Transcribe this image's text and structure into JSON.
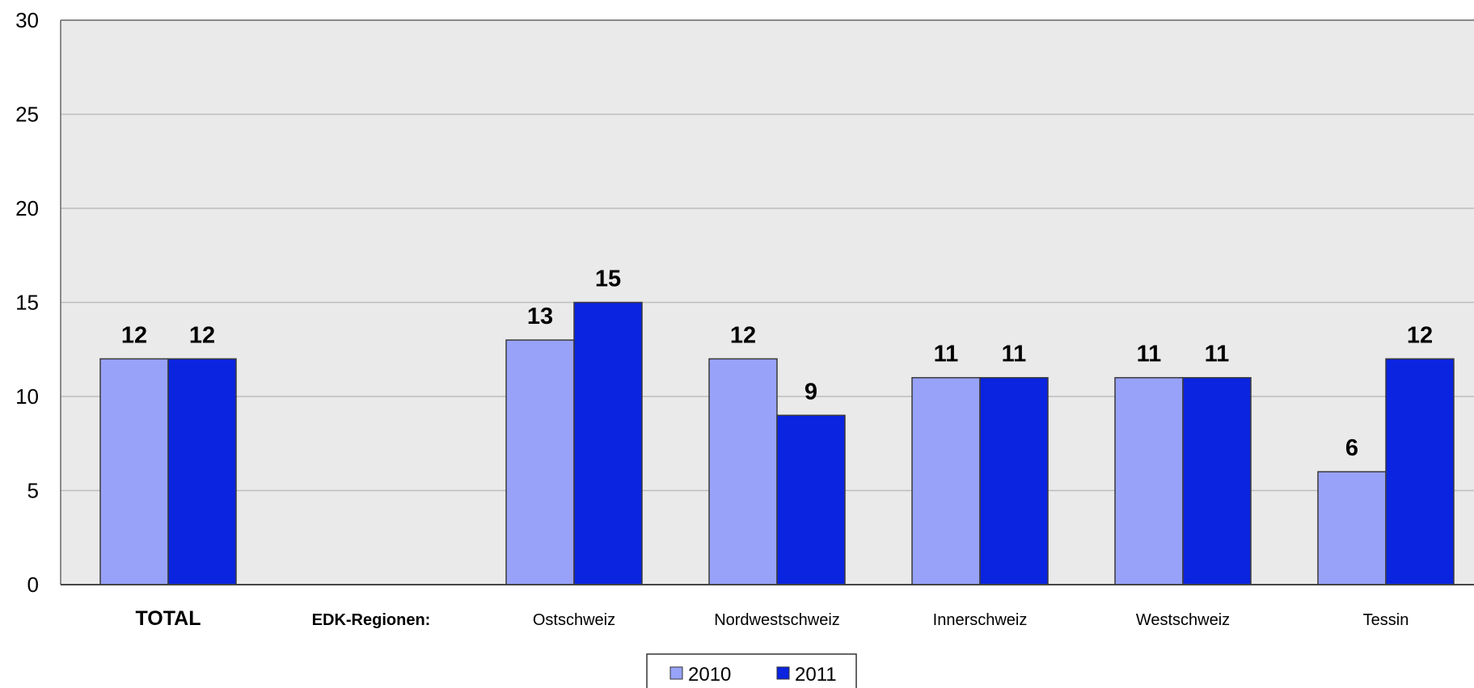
{
  "chart_data": {
    "type": "bar",
    "categories": [
      "TOTAL",
      "EDK-Regionen:",
      "Ostschweiz",
      "Nordwestschweiz",
      "Innerschweiz",
      "Westschweiz",
      "Tessin"
    ],
    "category_styles": [
      "bold-large",
      "bold",
      "normal",
      "normal",
      "normal",
      "normal",
      "normal"
    ],
    "series": [
      {
        "name": "2010",
        "color": "#98A2F8",
        "values": [
          12,
          null,
          13,
          12,
          11,
          11,
          6
        ]
      },
      {
        "name": "2011",
        "color": "#0A24E0",
        "values": [
          12,
          null,
          15,
          9,
          11,
          11,
          12
        ]
      }
    ],
    "ylim": [
      0,
      30
    ],
    "yticks": [
      0,
      5,
      10,
      15,
      20,
      25,
      30
    ],
    "grid": true,
    "plot_background": "#EAEAEA",
    "legend_position": "bottom",
    "data_labels": true,
    "title": "",
    "xlabel": "",
    "ylabel": ""
  }
}
